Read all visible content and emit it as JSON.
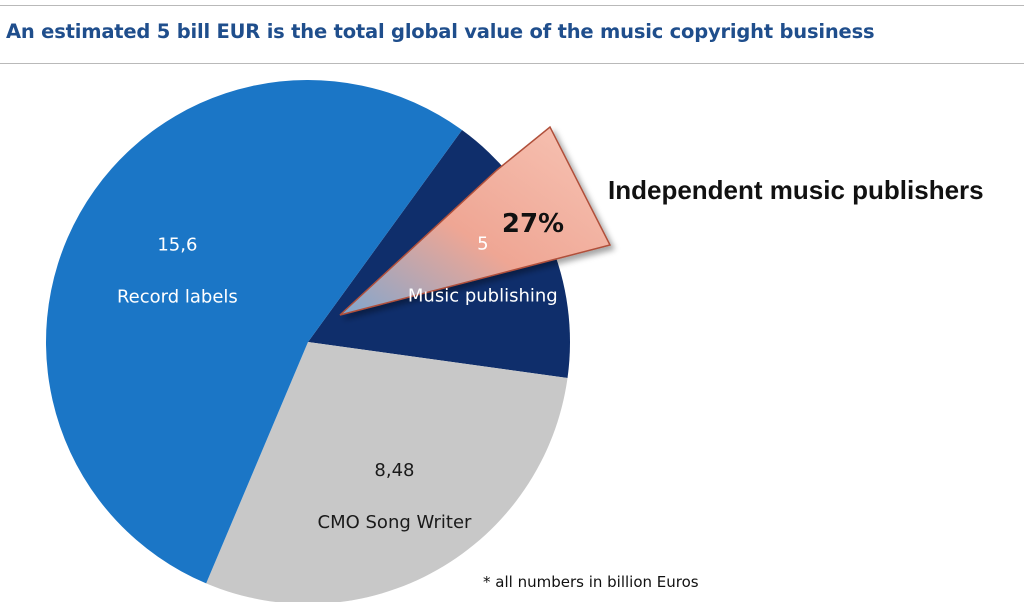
{
  "title": "An estimated 5 bill EUR is the total global value of the music copyright business",
  "footnote": "* all numbers in billion Euros",
  "callout": {
    "label": "Independent music publishers",
    "percent": "27%",
    "color_light": "#f7b7a6",
    "color_dark": "#e8846a"
  },
  "chart_data": {
    "type": "pie",
    "title": "An estimated 5 bill EUR is the total global value of the music copyright business",
    "slices": [
      {
        "name": "Record labels",
        "value": 15.6,
        "value_label": "15,6",
        "color": "#1b76c6"
      },
      {
        "name": "Music publishing",
        "value": 5,
        "value_label": "5",
        "color": "#0f2e6b"
      },
      {
        "name": "CMO Song Writer",
        "value": 8.48,
        "value_label": "8,48",
        "color": "#c8c8c8"
      }
    ],
    "unit": "billion Euros",
    "annotation": {
      "label": "Independent music publishers",
      "value": "27%"
    }
  }
}
